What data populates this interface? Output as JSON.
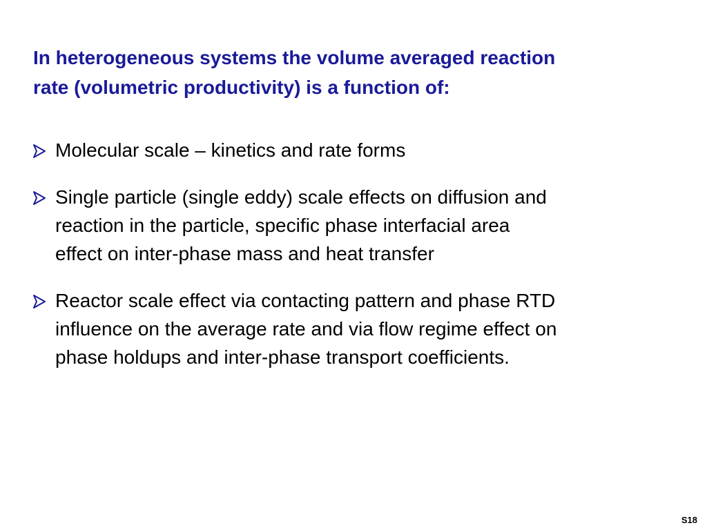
{
  "slide": {
    "title": [
      "In heterogeneous systems the volume averaged reaction",
      "rate (volumetric productivity) is a function of:"
    ],
    "bullets": [
      [
        "Molecular scale – kinetics and rate forms"
      ],
      [
        "Single particle (single eddy) scale effects on diffusion and",
        "reaction in the particle, specific phase interfacial area",
        "effect on inter-phase mass and heat transfer"
      ],
      [
        "Reactor scale effect via contacting pattern and phase RTD",
        "influence on the average rate and via flow regime effect on",
        "phase holdups and inter-phase transport coefficients."
      ]
    ],
    "page_number": "S18"
  }
}
